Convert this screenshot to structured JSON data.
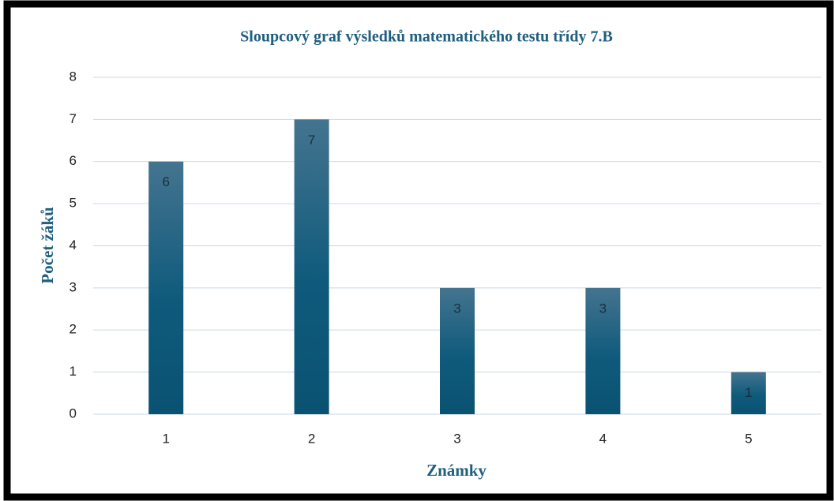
{
  "chart_data": {
    "type": "bar",
    "title": "Sloupcový graf výsledků matematického testu třídy 7.B",
    "x_label": "Známky",
    "y_label": "Počet žáků",
    "categories": [
      "1",
      "2",
      "3",
      "4",
      "5"
    ],
    "values": [
      6,
      7,
      3,
      3,
      1
    ],
    "color": "#0f5a7c",
    "ylim": [
      0,
      8
    ],
    "yticks": [
      0,
      1,
      2,
      3,
      4,
      5,
      6,
      7,
      8
    ],
    "grid": true
  }
}
